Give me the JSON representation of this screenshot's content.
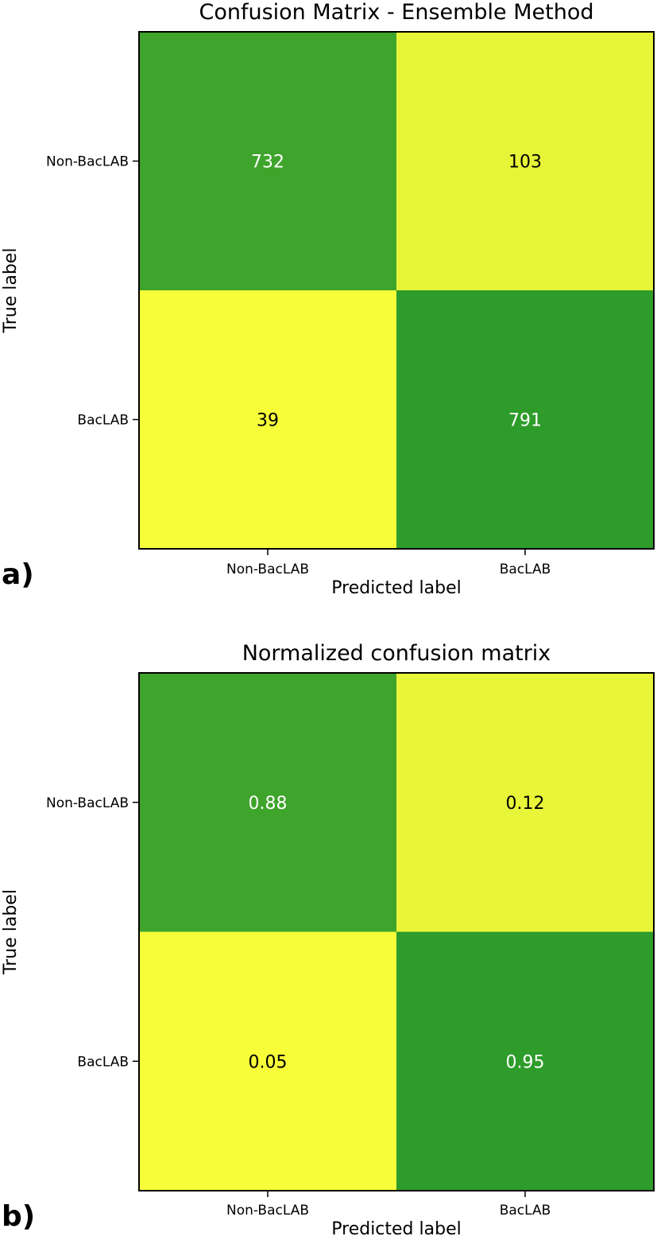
{
  "chart_data": [
    {
      "type": "heatmap",
      "panel_label": "a)",
      "title": "Confusion Matrix - Ensemble Method",
      "xlabel": "Predicted label",
      "ylabel": "True label",
      "x_categories": [
        "Non-BacLAB",
        "BacLAB"
      ],
      "y_categories": [
        "Non-BacLAB",
        "BacLAB"
      ],
      "values": [
        [
          732,
          103
        ],
        [
          39,
          791
        ]
      ],
      "value_labels": [
        [
          "732",
          "103"
        ],
        [
          "39",
          "791"
        ]
      ],
      "colormap": {
        "low": "#f8fd3a",
        "high": "#2e9c2a"
      },
      "vrange": [
        39,
        791
      ],
      "grid": false
    },
    {
      "type": "heatmap",
      "panel_label": "b)",
      "title": "Normalized confusion matrix",
      "xlabel": "Predicted label",
      "ylabel": "True label",
      "x_categories": [
        "Non-BacLAB",
        "BacLAB"
      ],
      "y_categories": [
        "Non-BacLAB",
        "BacLAB"
      ],
      "values": [
        [
          0.88,
          0.12
        ],
        [
          0.05,
          0.95
        ]
      ],
      "value_labels": [
        [
          "0.88",
          "0.12"
        ],
        [
          "0.05",
          "0.95"
        ]
      ],
      "colormap": {
        "low": "#f8fd3a",
        "high": "#2e9c2a"
      },
      "vrange": [
        0.05,
        0.95
      ],
      "grid": false
    }
  ]
}
